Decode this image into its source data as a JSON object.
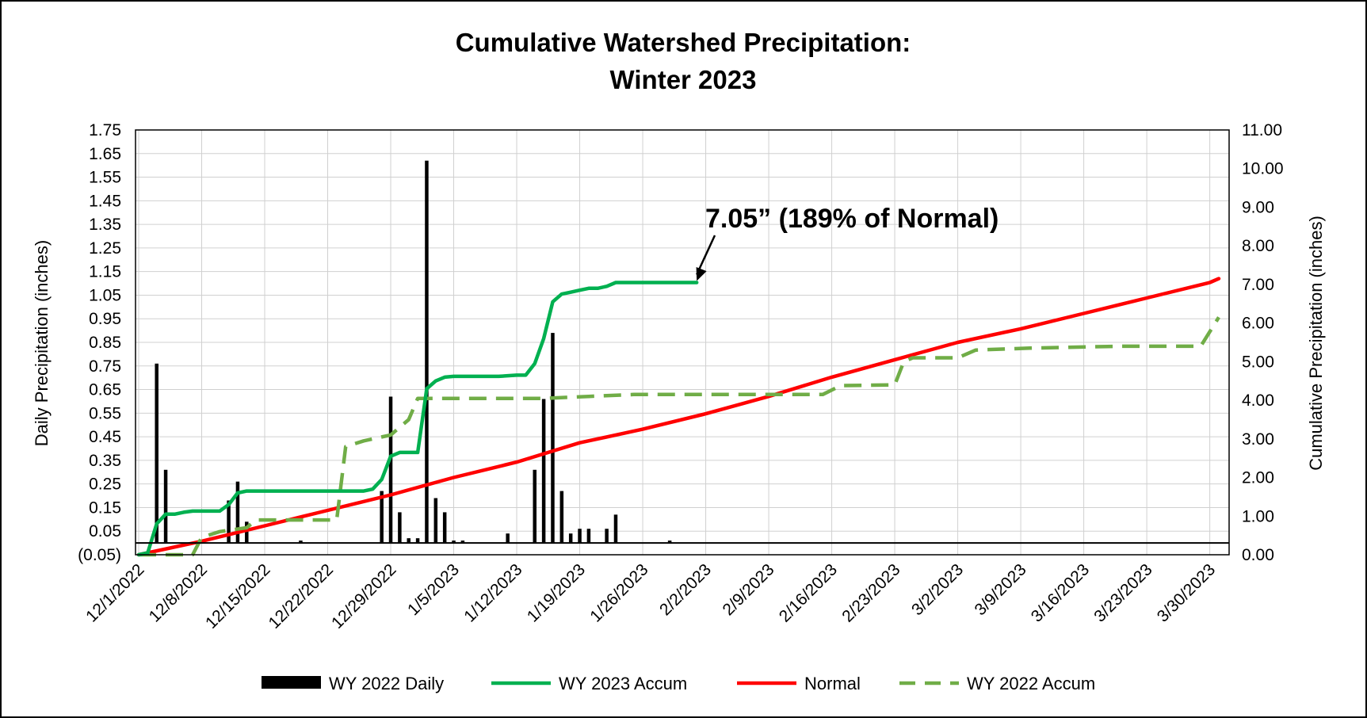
{
  "chart_data": {
    "type": "bar+line",
    "title": "Cumulative Watershed Precipitation:",
    "subtitle": "Winter 2023",
    "ylabel": "Daily Precipitation (inches)",
    "y2label": "Cumulative Precipitation (inches)",
    "y_ticks": [
      "1.75",
      "1.65",
      "1.55",
      "1.45",
      "1.35",
      "1.25",
      "1.15",
      "1.05",
      "0.95",
      "0.85",
      "0.75",
      "0.65",
      "0.55",
      "0.45",
      "0.35",
      "0.25",
      "0.15",
      "0.05",
      "(0.05)"
    ],
    "y2_ticks": [
      "11.00",
      "10.00",
      "9.00",
      "8.00",
      "7.00",
      "6.00",
      "5.00",
      "4.00",
      "3.00",
      "2.00",
      "1.00",
      "0.00"
    ],
    "x_ticks": [
      "12/1/2022",
      "12/8/2022",
      "12/15/2022",
      "12/22/2022",
      "12/29/2022",
      "1/5/2023",
      "1/12/2023",
      "1/19/2023",
      "1/26/2023",
      "2/2/2023",
      "2/9/2023",
      "2/16/2023",
      "2/23/2023",
      "3/2/2023",
      "3/9/2023",
      "3/16/2023",
      "3/23/2023",
      "3/30/2023"
    ],
    "ylim": [
      -0.05,
      1.75
    ],
    "y2lim": [
      0,
      11
    ],
    "grid": true,
    "legend_position": "bottom",
    "legend": [
      {
        "label": "WY 2022 Daily",
        "color": "#000000",
        "style": "bar"
      },
      {
        "label": "WY 2023 Accum",
        "color": "#00b050",
        "style": "solid"
      },
      {
        "label": "Normal",
        "color": "#ff0000",
        "style": "solid"
      },
      {
        "label": "WY 2022 Accum",
        "color": "#70ad47",
        "style": "dashed"
      }
    ],
    "annotation": {
      "text": "7.05” (189% of Normal)",
      "points_to": [
        "2/1/2023",
        7.05
      ]
    },
    "daily_bars": [
      {
        "x": "12/3/2022",
        "y": 0.76
      },
      {
        "x": "12/4/2022",
        "y": 0.31
      },
      {
        "x": "12/11/2022",
        "y": 0.18
      },
      {
        "x": "12/12/2022",
        "y": 0.26
      },
      {
        "x": "12/13/2022",
        "y": 0.09
      },
      {
        "x": "12/19/2022",
        "y": 0.01
      },
      {
        "x": "12/28/2022",
        "y": 0.22
      },
      {
        "x": "12/29/2022",
        "y": 0.62
      },
      {
        "x": "12/30/2022",
        "y": 0.13
      },
      {
        "x": "12/31/2022",
        "y": 0.02
      },
      {
        "x": "1/1/2023",
        "y": 0.02
      },
      {
        "x": "1/2/2023",
        "y": 1.62
      },
      {
        "x": "1/3/2023",
        "y": 0.19
      },
      {
        "x": "1/4/2023",
        "y": 0.13
      },
      {
        "x": "1/5/2023",
        "y": 0.01
      },
      {
        "x": "1/6/2023",
        "y": 0.01
      },
      {
        "x": "1/11/2023",
        "y": 0.04
      },
      {
        "x": "1/14/2023",
        "y": 0.31
      },
      {
        "x": "1/15/2023",
        "y": 0.61
      },
      {
        "x": "1/16/2023",
        "y": 0.89
      },
      {
        "x": "1/17/2023",
        "y": 0.22
      },
      {
        "x": "1/18/2023",
        "y": 0.04
      },
      {
        "x": "1/19/2023",
        "y": 0.06
      },
      {
        "x": "1/20/2023",
        "y": 0.06
      },
      {
        "x": "1/22/2023",
        "y": 0.06
      },
      {
        "x": "1/23/2023",
        "y": 0.12
      },
      {
        "x": "1/29/2023",
        "y": 0.01
      }
    ],
    "series": [
      {
        "name": "WY 2023 Accum",
        "points": [
          [
            "12/1/2022",
            0.0
          ],
          [
            "12/2/2022",
            0.05
          ],
          [
            "12/3/2022",
            0.8
          ],
          [
            "12/4/2022",
            1.05
          ],
          [
            "12/5/2022",
            1.05
          ],
          [
            "12/6/2022",
            1.1
          ],
          [
            "12/7/2022",
            1.13
          ],
          [
            "12/8/2022",
            1.13
          ],
          [
            "12/9/2022",
            1.13
          ],
          [
            "12/10/2022",
            1.13
          ],
          [
            "12/11/2022",
            1.3
          ],
          [
            "12/12/2022",
            1.6
          ],
          [
            "12/13/2022",
            1.65
          ],
          [
            "12/14/2022",
            1.65
          ],
          [
            "12/20/2022",
            1.65
          ],
          [
            "12/26/2022",
            1.65
          ],
          [
            "12/27/2022",
            1.7
          ],
          [
            "12/28/2022",
            1.95
          ],
          [
            "12/29/2022",
            2.55
          ],
          [
            "12/30/2022",
            2.65
          ],
          [
            "12/31/2022",
            2.65
          ],
          [
            "1/1/2023",
            2.65
          ],
          [
            "1/2/2023",
            4.3
          ],
          [
            "1/3/2023",
            4.5
          ],
          [
            "1/4/2023",
            4.6
          ],
          [
            "1/5/2023",
            4.62
          ],
          [
            "1/10/2023",
            4.62
          ],
          [
            "1/12/2023",
            4.65
          ],
          [
            "1/13/2023",
            4.65
          ],
          [
            "1/14/2023",
            4.95
          ],
          [
            "1/15/2023",
            5.6
          ],
          [
            "1/16/2023",
            6.55
          ],
          [
            "1/17/2023",
            6.75
          ],
          [
            "1/18/2023",
            6.8
          ],
          [
            "1/19/2023",
            6.85
          ],
          [
            "1/20/2023",
            6.9
          ],
          [
            "1/21/2023",
            6.9
          ],
          [
            "1/22/2023",
            6.95
          ],
          [
            "1/23/2023",
            7.05
          ],
          [
            "1/28/2023",
            7.05
          ],
          [
            "2/1/2023",
            7.05
          ]
        ]
      },
      {
        "name": "Normal",
        "points": [
          [
            "12/1/2022",
            0.0
          ],
          [
            "12/8/2022",
            0.35
          ],
          [
            "12/15/2022",
            0.75
          ],
          [
            "12/22/2022",
            1.15
          ],
          [
            "12/29/2022",
            1.55
          ],
          [
            "1/5/2023",
            2.0
          ],
          [
            "1/12/2023",
            2.4
          ],
          [
            "1/19/2023",
            2.9
          ],
          [
            "1/26/2023",
            3.25
          ],
          [
            "2/2/2023",
            3.65
          ],
          [
            "2/9/2023",
            4.1
          ],
          [
            "2/16/2023",
            4.6
          ],
          [
            "2/23/2023",
            5.05
          ],
          [
            "3/2/2023",
            5.5
          ],
          [
            "3/9/2023",
            5.85
          ],
          [
            "3/16/2023",
            6.25
          ],
          [
            "3/23/2023",
            6.65
          ],
          [
            "3/30/2023",
            7.05
          ],
          [
            "3/31/2023",
            7.15
          ]
        ]
      },
      {
        "name": "WY 2022 Accum",
        "points": [
          [
            "12/1/2022",
            0.0
          ],
          [
            "12/2/2022",
            0.0
          ],
          [
            "12/3/2022",
            0.0
          ],
          [
            "12/6/2022",
            0.0
          ],
          [
            "12/7/2022",
            0.0
          ],
          [
            "12/8/2022",
            0.45
          ],
          [
            "12/10/2022",
            0.6
          ],
          [
            "12/13/2022",
            0.7
          ],
          [
            "12/14/2022",
            0.9
          ],
          [
            "12/22/2022",
            0.9
          ],
          [
            "12/23/2022",
            0.9
          ],
          [
            "12/24/2022",
            2.8
          ],
          [
            "12/26/2022",
            2.95
          ],
          [
            "12/29/2022",
            3.1
          ],
          [
            "12/31/2022",
            3.5
          ],
          [
            "1/1/2023",
            4.05
          ],
          [
            "1/2/2023",
            4.05
          ],
          [
            "1/10/2023",
            4.05
          ],
          [
            "1/15/2023",
            4.05
          ],
          [
            "1/20/2023",
            4.1
          ],
          [
            "1/25/2023",
            4.15
          ],
          [
            "2/1/2023",
            4.15
          ],
          [
            "2/10/2023",
            4.15
          ],
          [
            "2/15/2023",
            4.15
          ],
          [
            "2/17/2023",
            4.38
          ],
          [
            "2/23/2023",
            4.4
          ],
          [
            "2/24/2023",
            5.0
          ],
          [
            "2/25/2023",
            5.1
          ],
          [
            "3/2/2023",
            5.1
          ],
          [
            "3/4/2023",
            5.3
          ],
          [
            "3/10/2023",
            5.35
          ],
          [
            "3/20/2023",
            5.4
          ],
          [
            "3/25/2023",
            5.4
          ],
          [
            "3/29/2023",
            5.4
          ],
          [
            "3/31/2023",
            6.15
          ]
        ]
      }
    ]
  }
}
